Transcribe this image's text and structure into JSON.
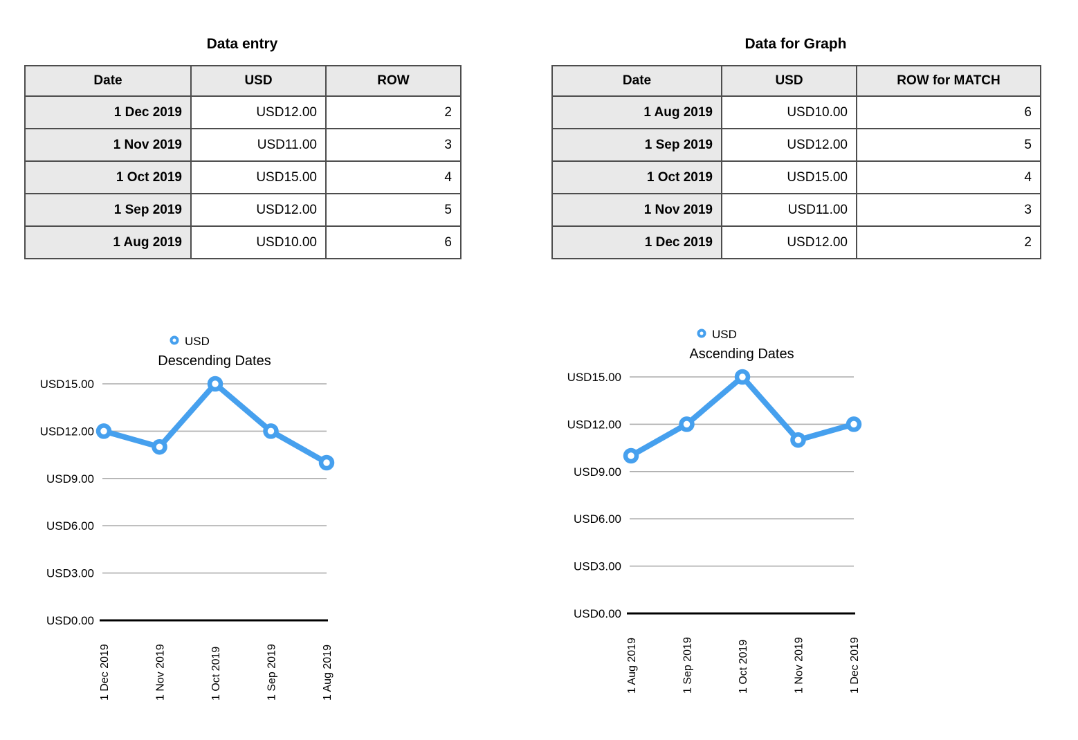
{
  "colors": {
    "accent_blue": "#46A0EE",
    "gridline": "#ABABAB",
    "axis": "#000000",
    "table_border": "#4D4D4D",
    "header_bg": "#E9E9E9"
  },
  "tables": {
    "data_entry": {
      "title": "Data entry",
      "headers": [
        "Date",
        "USD",
        "ROW"
      ],
      "rows": [
        [
          "1 Dec 2019",
          "USD12.00",
          "2"
        ],
        [
          "1 Nov 2019",
          "USD11.00",
          "3"
        ],
        [
          "1 Oct 2019",
          "USD15.00",
          "4"
        ],
        [
          "1 Sep 2019",
          "USD12.00",
          "5"
        ],
        [
          "1 Aug 2019",
          "USD10.00",
          "6"
        ]
      ]
    },
    "data_for_graph": {
      "title": "Data for Graph",
      "headers": [
        "Date",
        "USD",
        "ROW for MATCH"
      ],
      "rows": [
        [
          "1 Aug 2019",
          "USD10.00",
          "6"
        ],
        [
          "1 Sep 2019",
          "USD12.00",
          "5"
        ],
        [
          "1 Oct 2019",
          "USD15.00",
          "4"
        ],
        [
          "1 Nov 2019",
          "USD11.00",
          "3"
        ],
        [
          "1 Dec 2019",
          "USD12.00",
          "2"
        ]
      ]
    }
  },
  "chart_data": [
    {
      "type": "line",
      "title": "Descending Dates",
      "legend": [
        "USD"
      ],
      "legend_position": "top",
      "marker": "open-circle",
      "line_color": "#46A0EE",
      "categories": [
        "1 Dec 2019",
        "1 Nov 2019",
        "1 Oct 2019",
        "1 Sep 2019",
        "1 Aug 2019"
      ],
      "series": [
        {
          "name": "USD",
          "values": [
            12,
            11,
            15,
            12,
            10
          ]
        }
      ],
      "ylim": [
        0,
        15
      ],
      "ytick_step": 3,
      "ytick_labels": [
        "USD15.00",
        "USD12.00",
        "USD9.00",
        "USD6.00",
        "USD3.00",
        "USD0.00"
      ],
      "grid": true
    },
    {
      "type": "line",
      "title": "Ascending Dates",
      "legend": [
        "USD"
      ],
      "legend_position": "top",
      "marker": "open-circle",
      "line_color": "#46A0EE",
      "categories": [
        "1 Aug 2019",
        "1 Sep 2019",
        "1 Oct 2019",
        "1 Nov 2019",
        "1 Dec 2019"
      ],
      "series": [
        {
          "name": "USD",
          "values": [
            10,
            12,
            15,
            11,
            12
          ]
        }
      ],
      "ylim": [
        0,
        15
      ],
      "ytick_step": 3,
      "ytick_labels": [
        "USD15.00",
        "USD12.00",
        "USD9.00",
        "USD6.00",
        "USD3.00",
        "USD0.00"
      ],
      "grid": true
    }
  ]
}
